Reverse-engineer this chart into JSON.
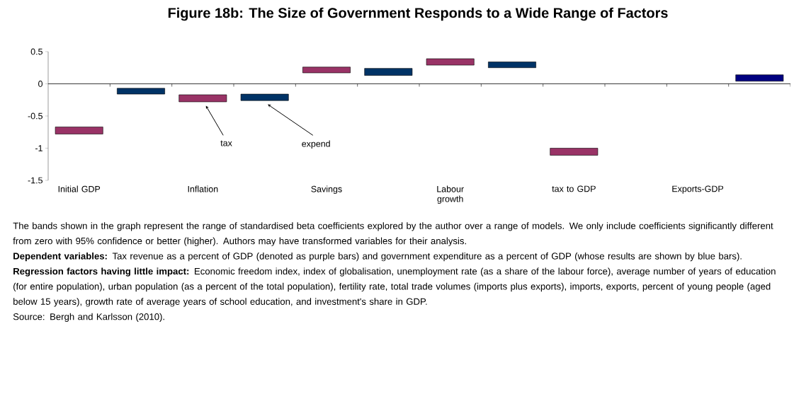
{
  "chart_data": {
    "type": "bar",
    "title": "Figure 18b: The Size of Government Responds to a Wide Range of Factors",
    "categories": [
      "Initial GDP",
      null,
      "Inflation",
      null,
      "Savings",
      null,
      "Labour growth",
      null,
      "tax to GDP",
      null,
      "Exports-GDP",
      null
    ],
    "series": [
      {
        "name": "tax",
        "color": "#993366",
        "values": [
          0.11,
          null,
          0.11,
          null,
          0.09,
          null,
          0.1,
          null,
          0.11,
          null,
          null,
          null
        ],
        "base": [
          -0.78,
          null,
          -0.28,
          null,
          0.17,
          null,
          0.29,
          null,
          -1.11,
          null,
          null,
          null
        ]
      },
      {
        "name": "expend",
        "color": "#003366",
        "colors": [
          null,
          null,
          null,
          null,
          null,
          null,
          null,
          null,
          null,
          null,
          null,
          "#000080"
        ],
        "values": [
          null,
          0.09,
          null,
          0.1,
          null,
          0.11,
          null,
          0.09,
          null,
          null,
          null,
          0.1
        ],
        "base": [
          null,
          -0.16,
          null,
          -0.26,
          null,
          0.13,
          null,
          0.25,
          null,
          null,
          null,
          0.04
        ]
      }
    ],
    "ylim": [
      -1.5,
      0.5
    ],
    "yticks": [
      -1.5,
      -1,
      -0.5,
      0,
      0.5
    ],
    "annotations": [
      "The bands shown in the graph represent the range of standardised beta coefficients explored by the author over a range of models. We only include coefficients significantly different from zero with 95% confidence or better (higher). Authors may have transformed variables for their analysis.",
      "**Dependent variables:** Tax revenue as a percent of GDP (denoted as purple bars) and government expenditure as a percent of GDP (whose results are shown by blue bars).",
      "**Regression factors having little impact:** Economic freedom index, index of globalisation, unemployment rate (as a share of the labour force), average number of years of education (for entire population), urban population (as a percent of the total population), fertility rate, total trade volumes (imports plus exports), imports, exports, percent of young people (aged below 15 years), growth rate of average years of school education, and investment's share in GDP.",
      "Source: Bergh and Karlsson (2010)."
    ]
  }
}
